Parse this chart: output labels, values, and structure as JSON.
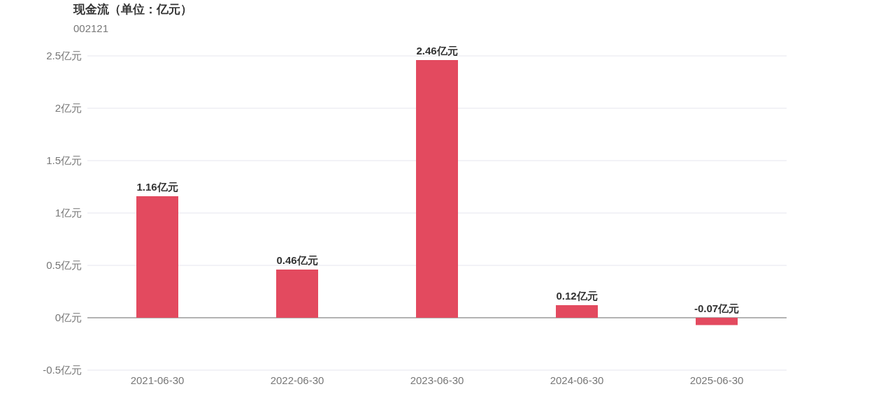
{
  "chart_data": {
    "type": "bar",
    "title": "现金流（单位：亿元）",
    "subtitle": "002121",
    "categories": [
      "2021-06-30",
      "2022-06-30",
      "2023-06-30",
      "2024-06-30",
      "2025-06-30"
    ],
    "values": [
      1.16,
      0.46,
      2.46,
      0.12,
      -0.07
    ],
    "value_labels": [
      "1.16亿元",
      "0.46亿元",
      "2.46亿元",
      "0.12亿元",
      "-0.07亿元"
    ],
    "color": "#e34a5f",
    "ylim": [
      -0.5,
      2.5
    ],
    "yticks": [
      {
        "value": -0.5,
        "label": "-0.5亿元"
      },
      {
        "value": 0,
        "label": "0亿元"
      },
      {
        "value": 0.5,
        "label": "0.5亿元"
      },
      {
        "value": 1,
        "label": "1亿元"
      },
      {
        "value": 1.5,
        "label": "1.5亿元"
      },
      {
        "value": 2,
        "label": "2亿元"
      },
      {
        "value": 2.5,
        "label": "2.5亿元"
      }
    ],
    "grid": "y"
  }
}
